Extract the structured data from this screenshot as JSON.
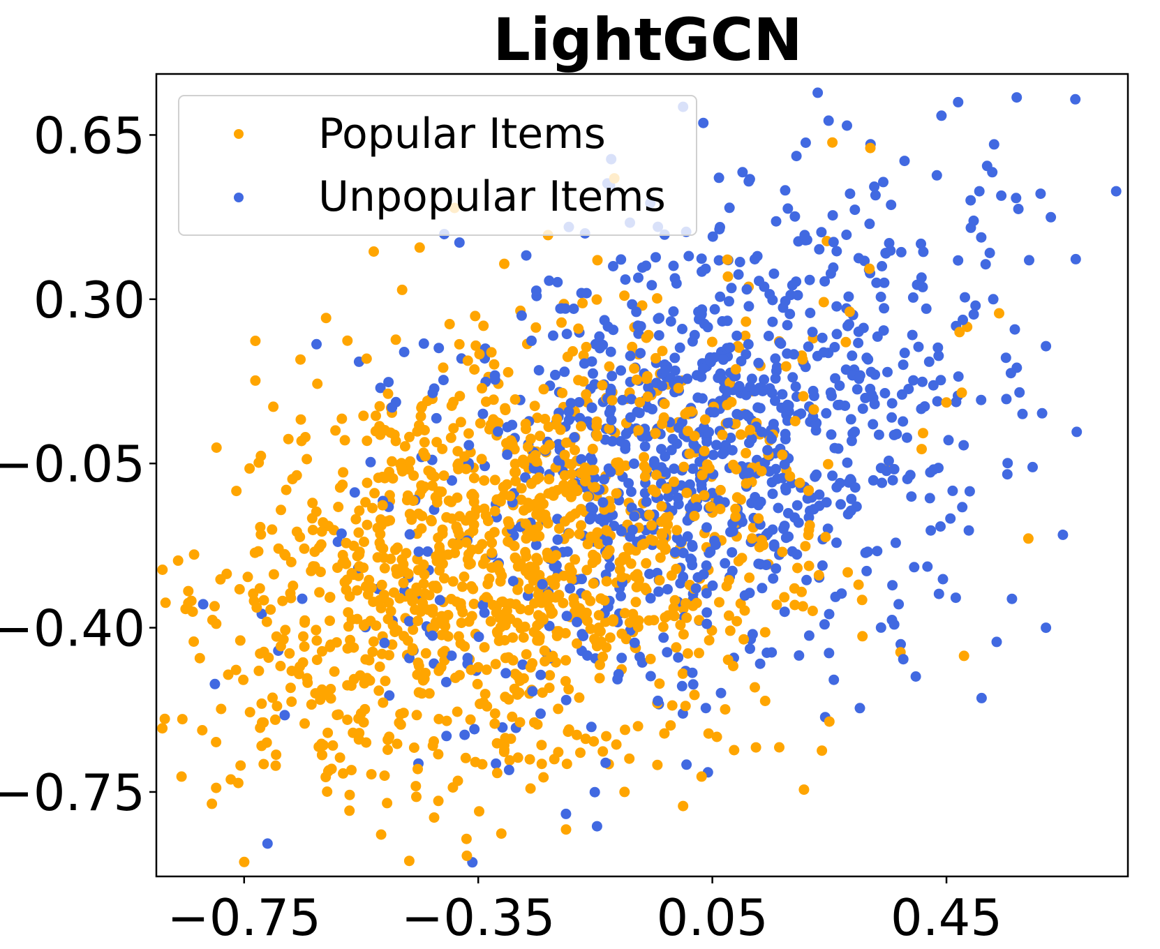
{
  "chart_data": {
    "type": "scatter",
    "title": "LightGCN",
    "xlabel": "",
    "ylabel": "",
    "xlim": [
      -0.9,
      0.76
    ],
    "ylim": [
      -0.93,
      0.78
    ],
    "xticks": [
      -0.75,
      -0.35,
      0.05,
      0.45
    ],
    "xtick_labels": [
      "−0.75",
      "−0.35",
      "0.05",
      "0.45"
    ],
    "yticks": [
      -0.75,
      -0.4,
      -0.05,
      0.3,
      0.65
    ],
    "ytick_labels": [
      "−0.75",
      "−0.40",
      "−0.05",
      "0.30",
      "0.65"
    ],
    "grid": false,
    "legend_position": "top-left",
    "series": [
      {
        "name": "Popular Items",
        "color": "#ffa500",
        "center": [
          -0.3,
          -0.25
        ],
        "spread": [
          0.25,
          0.25
        ],
        "count": 1300,
        "points": [
          [
            -0.37,
            -0.85
          ],
          [
            -0.57,
            -0.79
          ],
          [
            -0.2,
            -0.83
          ],
          [
            -0.74,
            -0.58
          ],
          [
            0.59,
            -0.21
          ],
          [
            0.48,
            -0.46
          ],
          [
            -0.22,
            -0.68
          ],
          [
            0.45,
            0.08
          ],
          [
            0.54,
            0.27
          ],
          [
            0.25,
            -0.6
          ],
          [
            -0.85,
            -0.36
          ],
          [
            0.0,
            -0.78
          ],
          [
            -0.1,
            -0.75
          ],
          [
            -0.48,
            0.32
          ],
          [
            -0.61,
            0.26
          ],
          [
            -0.45,
            0.41
          ]
        ]
      },
      {
        "name": "Unpopular Items",
        "color": "#4169e1",
        "center": [
          0.05,
          0.0
        ],
        "spread": [
          0.25,
          0.28
        ],
        "count": 1000,
        "points": [
          [
            0.23,
            0.74
          ],
          [
            0.57,
            0.73
          ],
          [
            0.47,
            0.72
          ],
          [
            0.28,
            0.67
          ],
          [
            0.74,
            0.53
          ],
          [
            0.53,
            0.3
          ],
          [
            0.62,
            0.2
          ],
          [
            0.51,
            -0.55
          ],
          [
            0.62,
            -0.4
          ],
          [
            -0.71,
            -0.86
          ],
          [
            -0.36,
            -0.9
          ],
          [
            -0.8,
            -0.52
          ],
          [
            -0.82,
            -0.35
          ],
          [
            0.0,
            0.71
          ]
        ]
      }
    ]
  },
  "colors": {
    "popular": "#ffa500",
    "unpopular": "#4169e1",
    "axes": "#000000"
  }
}
